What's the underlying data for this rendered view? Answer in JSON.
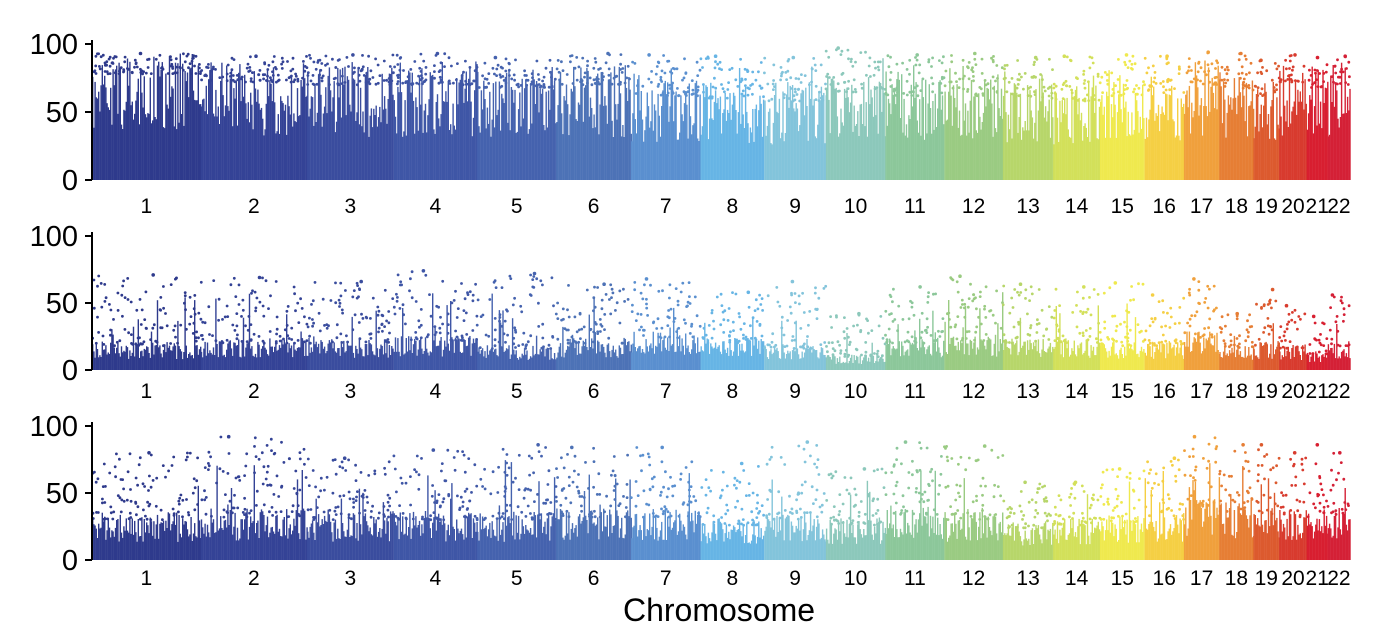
{
  "chart_data": {
    "type": "scatter",
    "xlabel": "Chromosome",
    "chromosomes": [
      {
        "label": "1",
        "size": 249,
        "color": "#2e3a8c"
      },
      {
        "label": "2",
        "size": 243,
        "color": "#344396"
      },
      {
        "label": "3",
        "size": 198,
        "color": "#3a4d9e"
      },
      {
        "label": "4",
        "size": 191,
        "color": "#3f56a6"
      },
      {
        "label": "5",
        "size": 181,
        "color": "#4562ae"
      },
      {
        "label": "6",
        "size": 171,
        "color": "#4d72b6"
      },
      {
        "label": "7",
        "size": 159,
        "color": "#5a8fcf"
      },
      {
        "label": "8",
        "size": 146,
        "color": "#67b5e5"
      },
      {
        "label": "9",
        "size": 141,
        "color": "#83c4db"
      },
      {
        "label": "10",
        "size": 136,
        "color": "#8cc8bb"
      },
      {
        "label": "11",
        "size": 135,
        "color": "#8cc79a"
      },
      {
        "label": "12",
        "size": 134,
        "color": "#9acb82"
      },
      {
        "label": "13",
        "size": 115,
        "color": "#b7d66a"
      },
      {
        "label": "14",
        "size": 107,
        "color": "#d3e05a"
      },
      {
        "label": "15",
        "size": 102,
        "color": "#efe94e"
      },
      {
        "label": "16",
        "size": 90,
        "color": "#f5cf44"
      },
      {
        "label": "17",
        "size": 81,
        "color": "#f0a03c"
      },
      {
        "label": "18",
        "size": 78,
        "color": "#e67e35"
      },
      {
        "label": "19",
        "size": 59,
        "color": "#dc5a2e"
      },
      {
        "label": "20",
        "size": 63,
        "color": "#d83b2e"
      },
      {
        "label": "21",
        "size": 48,
        "color": "#d81f30"
      },
      {
        "label": "22",
        "size": 51,
        "color": "#d42036"
      }
    ],
    "panels": [
      {
        "ylim": [
          0,
          100
        ],
        "yticks": [
          0,
          50,
          100
        ],
        "chrom_max": [
          93,
          91,
          92,
          93,
          90,
          93,
          92,
          91,
          90,
          97,
          92,
          93,
          90,
          91,
          92,
          91,
          94,
          93,
          88,
          92,
          90,
          91
        ],
        "chrom_base": [
          78,
          72,
          70,
          70,
          68,
          70,
          62,
          60,
          58,
          64,
          62,
          62,
          60,
          58,
          62,
          64,
          70,
          66,
          62,
          72,
          68,
          70
        ]
      },
      {
        "ylim": [
          0,
          100
        ],
        "yticks": [
          0,
          50,
          100
        ],
        "chrom_max": [
          71,
          69,
          66,
          74,
          72,
          64,
          68,
          58,
          66,
          42,
          62,
          70,
          64,
          62,
          65,
          56,
          68,
          42,
          60,
          48,
          40,
          56
        ],
        "chrom_base": [
          18,
          20,
          20,
          22,
          16,
          20,
          24,
          20,
          16,
          10,
          20,
          22,
          20,
          20,
          18,
          18,
          24,
          16,
          18,
          16,
          12,
          18
        ]
      },
      {
        "ylim": [
          0,
          100
        ],
        "yticks": [
          0,
          50,
          100
        ],
        "chrom_max": [
          80,
          92,
          76,
          82,
          86,
          84,
          84,
          72,
          88,
          68,
          88,
          85,
          58,
          58,
          68,
          76,
          92,
          86,
          86,
          80,
          86,
          80
        ],
        "chrom_base": [
          30,
          32,
          30,
          30,
          30,
          32,
          32,
          26,
          30,
          26,
          34,
          30,
          24,
          26,
          28,
          30,
          40,
          36,
          34,
          32,
          32,
          34
        ]
      }
    ]
  }
}
